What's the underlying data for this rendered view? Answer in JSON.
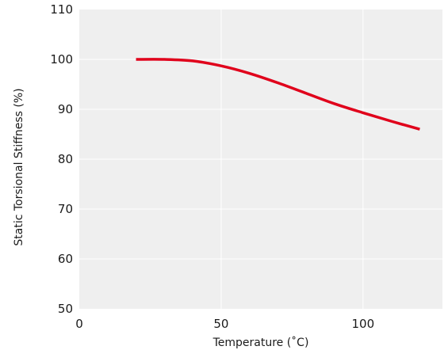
{
  "chart_data": {
    "type": "line",
    "title": "",
    "xlabel": "Temperature (˚C)",
    "ylabel": "Static Torsional Stiffness (%)",
    "xlim": [
      0,
      128
    ],
    "ylim": [
      50,
      110
    ],
    "xticks": [
      0,
      50,
      100
    ],
    "yticks": [
      50,
      60,
      70,
      80,
      90,
      100,
      110
    ],
    "grid": true,
    "series": [
      {
        "color": "#e0001b",
        "x": [
          20,
          30,
          40,
          50,
          60,
          70,
          80,
          90,
          100,
          110,
          120
        ],
        "y": [
          100,
          100,
          99.7,
          98.7,
          97.2,
          95.3,
          93.2,
          91.1,
          89.3,
          87.6,
          86.0
        ]
      }
    ]
  },
  "colors": {
    "plot_background": "#efefef",
    "grid": "#ffffff",
    "line": "#e0001b"
  }
}
